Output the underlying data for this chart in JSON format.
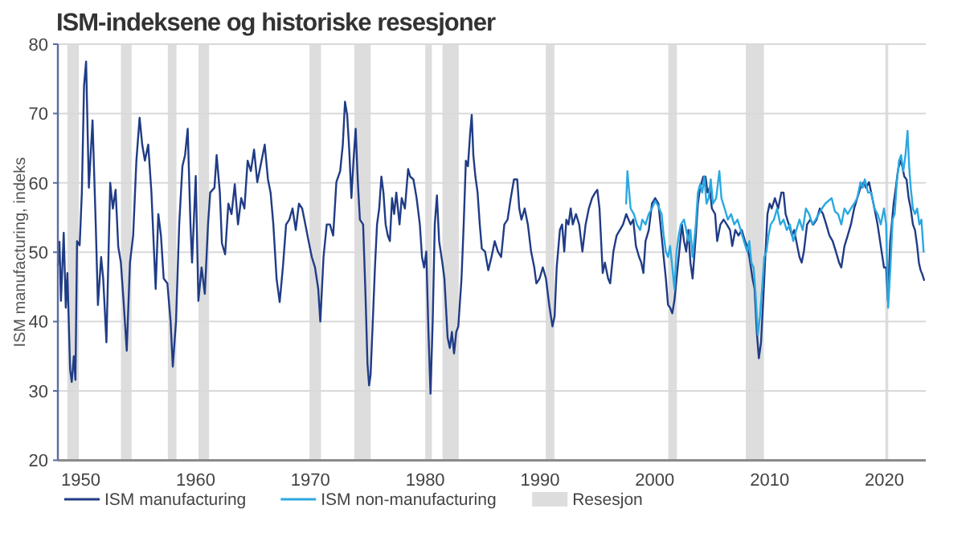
{
  "chart_data": {
    "type": "line",
    "title": "ISM-indeksene og historiske resesjoner",
    "ylabel": "ISM manufacturing, indeks",
    "xlim": [
      1948,
      2023.6
    ],
    "xticks": [
      1950,
      1960,
      1970,
      1980,
      1990,
      2000,
      2010,
      2020
    ],
    "ylim": [
      20,
      80
    ],
    "yticks": [
      20,
      30,
      40,
      50,
      60,
      70,
      80
    ],
    "grid": "y",
    "legend": "bottom",
    "series": [
      {
        "name": "ISM manufacturing",
        "color": "#203c86",
        "x": [
          1948.0,
          1948.14,
          1948.27,
          1948.51,
          1948.69,
          1948.83,
          1949.07,
          1949.21,
          1949.39,
          1949.53,
          1949.67,
          1949.9,
          1950.09,
          1950.28,
          1950.46,
          1950.7,
          1951.02,
          1951.3,
          1951.49,
          1951.77,
          1951.95,
          1952.23,
          1952.56,
          1952.79,
          1953.03,
          1953.26,
          1953.49,
          1953.72,
          1954.0,
          1954.28,
          1954.56,
          1954.84,
          1955.12,
          1955.35,
          1955.58,
          1955.87,
          1956.15,
          1956.52,
          1956.75,
          1956.98,
          1957.22,
          1957.54,
          1957.82,
          1958.01,
          1958.29,
          1958.57,
          1958.85,
          1959.08,
          1959.31,
          1959.55,
          1959.69,
          1960.01,
          1960.24,
          1960.52,
          1960.8,
          1961.08,
          1961.27,
          1961.64,
          1961.83,
          1962.11,
          1962.29,
          1962.57,
          1962.85,
          1963.13,
          1963.41,
          1963.69,
          1963.97,
          1964.25,
          1964.53,
          1964.81,
          1965.09,
          1965.37,
          1965.74,
          1966.02,
          1966.3,
          1966.53,
          1966.77,
          1967.05,
          1967.32,
          1967.6,
          1967.88,
          1968.16,
          1968.44,
          1968.72,
          1969.0,
          1969.28,
          1969.56,
          1969.84,
          1970.12,
          1970.4,
          1970.68,
          1970.86,
          1971.14,
          1971.42,
          1971.7,
          1971.98,
          1972.26,
          1972.59,
          1972.82,
          1973.01,
          1973.2,
          1973.38,
          1973.57,
          1973.75,
          1973.94,
          1974.13,
          1974.31,
          1974.59,
          1974.78,
          1974.97,
          1975.11,
          1975.24,
          1975.43,
          1975.62,
          1975.8,
          1975.99,
          1976.18,
          1976.36,
          1976.55,
          1976.74,
          1976.92,
          1977.11,
          1977.29,
          1977.48,
          1977.76,
          1977.95,
          1978.23,
          1978.51,
          1978.69,
          1978.97,
          1979.25,
          1979.53,
          1979.72,
          1979.9,
          1980.09,
          1980.28,
          1980.46,
          1980.65,
          1980.83,
          1981.02,
          1981.21,
          1981.49,
          1981.67,
          1981.95,
          1982.14,
          1982.32,
          1982.51,
          1982.7,
          1982.88,
          1983.16,
          1983.35,
          1983.54,
          1983.72,
          1983.91,
          1984.05,
          1984.19,
          1984.37,
          1984.56,
          1984.75,
          1984.93,
          1985.21,
          1985.49,
          1985.77,
          1986.05,
          1986.33,
          1986.61,
          1986.89,
          1987.17,
          1987.45,
          1987.73,
          1988.01,
          1988.19,
          1988.38,
          1988.66,
          1988.94,
          1989.22,
          1989.5,
          1989.68,
          1989.96,
          1990.24,
          1990.52,
          1990.8,
          1991.08,
          1991.27,
          1991.45,
          1991.73,
          1991.92,
          1992.11,
          1992.29,
          1992.48,
          1992.67,
          1992.85,
          1993.13,
          1993.41,
          1993.69,
          1993.97,
          1994.25,
          1994.53,
          1994.81,
          1994.99,
          1995.18,
          1995.46,
          1995.65,
          1995.93,
          1996.11,
          1996.39,
          1996.67,
          1996.95,
          1997.23,
          1997.51,
          1997.89,
          1998.12,
          1998.35,
          1998.63,
          1998.82,
          1999.0,
          1999.19,
          1999.47,
          1999.75,
          2000.03,
          2000.31,
          2000.49,
          2000.77,
          2000.96,
          2001.15,
          2001.33,
          2001.52,
          2001.71,
          2001.89,
          2002.08,
          2002.36,
          2002.54,
          2002.73,
          2002.92,
          2003.1,
          2003.29,
          2003.57,
          2003.75,
          2003.94,
          2004.22,
          2004.41,
          2004.59,
          2004.78,
          2004.97,
          2005.25,
          2005.43,
          2005.71,
          2005.99,
          2006.27,
          2006.55,
          2006.74,
          2007.01,
          2007.29,
          2007.57,
          2007.85,
          2008.04,
          2008.23,
          2008.51,
          2008.69,
          2008.88,
          2009.06,
          2009.25,
          2009.44,
          2009.62,
          2009.81,
          2010.0,
          2010.18,
          2010.46,
          2010.74,
          2011.02,
          2011.21,
          2011.39,
          2011.67,
          2011.95,
          2012.14,
          2012.32,
          2012.6,
          2012.79,
          2012.98,
          2013.26,
          2013.54,
          2013.81,
          2014.09,
          2014.37,
          2014.65,
          2014.93,
          2015.21,
          2015.49,
          2015.77,
          2016.05,
          2016.24,
          2016.52,
          2016.8,
          2017.08,
          2017.36,
          2017.63,
          2017.91,
          2018.19,
          2018.38,
          2018.66,
          2018.94,
          2019.13,
          2019.4,
          2019.68,
          2019.96,
          2020.15,
          2020.3,
          2020.5,
          2020.8,
          2020.99,
          2021.17,
          2021.36,
          2021.55,
          2021.73,
          2021.92,
          2022.11,
          2022.29,
          2022.48,
          2022.66,
          2022.85,
          2023.0,
          2023.15,
          2023.3,
          2023.45
        ],
        "values": [
          48,
          51.5,
          43,
          52.8,
          42,
          47,
          33,
          31.3,
          35,
          31.6,
          51.6,
          51,
          58.6,
          74,
          77.5,
          59.3,
          69,
          54,
          42.4,
          49.3,
          46.2,
          37,
          60,
          56.3,
          59,
          50.8,
          48.5,
          43,
          35.8,
          48.5,
          52.4,
          63.2,
          69.4,
          65.5,
          63.2,
          65.5,
          58.6,
          44.7,
          55.5,
          52.4,
          46.2,
          45.5,
          40,
          33.5,
          40,
          54,
          62.4,
          64,
          67.8,
          54,
          48.5,
          61,
          43,
          47.8,
          44,
          54,
          58.6,
          59.3,
          64,
          58.6,
          51.3,
          49.7,
          57,
          55.5,
          59.8,
          54,
          57.8,
          56.3,
          63.2,
          61.7,
          64.8,
          60.1,
          63.2,
          65.5,
          60.5,
          58.6,
          54,
          46.2,
          42.8,
          47.8,
          54,
          54.7,
          56.3,
          53.2,
          57,
          56.3,
          54,
          51.6,
          49.3,
          47.8,
          44.7,
          40,
          49.3,
          54,
          54,
          52.4,
          60.1,
          61.7,
          65.5,
          71.7,
          69.8,
          64.8,
          57.8,
          63.2,
          67.8,
          60.1,
          54.7,
          54,
          44.7,
          33.9,
          30.8,
          32.3,
          40,
          47.8,
          54,
          56.3,
          60.9,
          58.6,
          54,
          52.4,
          51.6,
          57.8,
          55.5,
          58.6,
          54,
          57.8,
          56.3,
          62,
          60.9,
          60.5,
          57.8,
          54,
          49.3,
          47.8,
          50.1,
          38.5,
          29.6,
          40,
          54,
          58.2,
          51.6,
          48.5,
          46.2,
          37.7,
          36.2,
          38.5,
          35.4,
          38.5,
          39.3,
          46.2,
          54,
          63.2,
          62.4,
          67.1,
          69.8,
          64,
          60.9,
          58.6,
          54,
          50.5,
          50.1,
          47.4,
          49.3,
          51.6,
          50.1,
          49.3,
          54,
          54.7,
          57.8,
          60.5,
          60.5,
          56.3,
          54.7,
          56.3,
          54,
          50.1,
          47.8,
          45.5,
          46.2,
          47.8,
          46.2,
          42.4,
          39.3,
          40.8,
          47.8,
          53.2,
          54,
          50.1,
          54.7,
          54,
          56.3,
          54,
          55.5,
          54,
          50.1,
          54,
          56.3,
          57.8,
          58.6,
          59,
          56.3,
          47,
          48.5,
          46.2,
          45.5,
          50.1,
          52.4,
          53.2,
          54,
          55.5,
          54,
          54.7,
          50.9,
          49.3,
          48.5,
          47,
          51.6,
          53.2,
          57,
          57.8,
          57,
          54,
          49.3,
          46.2,
          42.4,
          42,
          41.2,
          43.1,
          46.2,
          49.3,
          54,
          51.6,
          50.1,
          53.2,
          48.5,
          46.2,
          52.4,
          57,
          59.3,
          60.9,
          60.9,
          58.6,
          59.3,
          56.3,
          55.5,
          51.6,
          54,
          54.7,
          54,
          53.2,
          50.9,
          53.2,
          52.4,
          53.2,
          51.6,
          50.9,
          49.3,
          46.2,
          44.7,
          38.5,
          34.7,
          37,
          43.1,
          49.3,
          55.5,
          57,
          56.3,
          57.8,
          56.3,
          58.6,
          58.6,
          55.5,
          54,
          52.4,
          53.2,
          51.6,
          49.3,
          48.5,
          50.1,
          54,
          54.7,
          54,
          54.7,
          56.3,
          55.5,
          54,
          52.4,
          51.6,
          50.1,
          48.5,
          47.8,
          50.9,
          52.4,
          54,
          56.3,
          57.8,
          59.3,
          60.1,
          59.3,
          60.1,
          57.8,
          56.3,
          54,
          50.9,
          47.8,
          47.8,
          43,
          51.6,
          57,
          59.3,
          61.7,
          63.2,
          62.4,
          60.9,
          60.5,
          57.8,
          56.3,
          54,
          53.2,
          50.9,
          48.5,
          47.4,
          46.8,
          46
        ]
      },
      {
        "name": "ISM non-manufacturing",
        "color": "#2aa9e0",
        "x": [
          1997.5,
          1997.61,
          1997.89,
          1998.17,
          1998.44,
          1998.72,
          1998.91,
          1999.19,
          1999.47,
          1999.75,
          2000.03,
          2000.31,
          2000.59,
          2000.77,
          2000.96,
          2001.15,
          2001.33,
          2001.52,
          2001.71,
          2001.89,
          2002.08,
          2002.26,
          2002.54,
          2002.73,
          2002.92,
          2003.1,
          2003.29,
          2003.57,
          2003.75,
          2003.94,
          2004.13,
          2004.31,
          2004.5,
          2004.69,
          2004.87,
          2005.06,
          2005.34,
          2005.62,
          2005.8,
          2006.08,
          2006.36,
          2006.64,
          2006.92,
          2007.2,
          2007.48,
          2007.76,
          2008.04,
          2008.23,
          2008.41,
          2008.6,
          2008.78,
          2008.97,
          2009.16,
          2009.34,
          2009.53,
          2009.72,
          2009.9,
          2010.09,
          2010.37,
          2010.65,
          2010.93,
          2011.21,
          2011.49,
          2011.77,
          2012.05,
          2012.32,
          2012.6,
          2012.88,
          2013.16,
          2013.44,
          2013.72,
          2014.0,
          2014.28,
          2014.56,
          2014.84,
          2015.12,
          2015.4,
          2015.68,
          2015.96,
          2016.24,
          2016.52,
          2016.8,
          2017.08,
          2017.36,
          2017.63,
          2017.91,
          2018.1,
          2018.29,
          2018.57,
          2018.85,
          2019.13,
          2019.4,
          2019.68,
          2019.96,
          2020.15,
          2020.32,
          2020.52,
          2020.71,
          2020.89,
          2021.08,
          2021.27,
          2021.45,
          2021.64,
          2021.83,
          2022.01,
          2022.15,
          2022.29,
          2022.48,
          2022.66,
          2022.85,
          2023.04,
          2023.22,
          2023.41
        ],
        "values": [
          57,
          61.7,
          56.3,
          55.5,
          54,
          53.2,
          54.7,
          54,
          55.5,
          56.3,
          57.4,
          56.6,
          55.5,
          52.4,
          50.1,
          49.3,
          50.9,
          47.8,
          44.7,
          50.1,
          52.4,
          54,
          54.7,
          53.2,
          51.6,
          53.2,
          49.3,
          54,
          58.6,
          59.8,
          58.6,
          60.9,
          57,
          57.8,
          60.5,
          57,
          57.8,
          61.7,
          57.8,
          56.3,
          54.7,
          55.5,
          54,
          54.7,
          53.2,
          51.6,
          50.1,
          51.6,
          48.5,
          47.8,
          43.9,
          38.1,
          40.8,
          44.7,
          49.3,
          50.1,
          52.4,
          54,
          54.7,
          56.3,
          54,
          54.7,
          53.2,
          54,
          51.6,
          53.2,
          54.7,
          53.2,
          56.3,
          55.5,
          54,
          54.7,
          55.5,
          56.3,
          57,
          57.4,
          57.8,
          55.9,
          55.5,
          54,
          56.3,
          55.5,
          56.3,
          57,
          57.8,
          60.1,
          59.3,
          60.5,
          58.6,
          58.6,
          56.3,
          55.5,
          54,
          56.3,
          54,
          42,
          47.8,
          54.7,
          55.5,
          60.1,
          63.2,
          64,
          61.7,
          64,
          67.5,
          62.4,
          59.3,
          56.3,
          55.5,
          56.3,
          54,
          54.7,
          50.1
        ]
      }
    ],
    "bands": [
      {
        "axis": "x",
        "from": 1948.83,
        "to": 1949.83,
        "label": "Resesjon",
        "color": "#dddddd"
      },
      {
        "axis": "x",
        "from": 1953.5,
        "to": 1954.42,
        "color": "#dddddd"
      },
      {
        "axis": "x",
        "from": 1957.58,
        "to": 1958.33,
        "color": "#dddddd"
      },
      {
        "axis": "x",
        "from": 1960.25,
        "to": 1961.17,
        "color": "#dddddd"
      },
      {
        "axis": "x",
        "from": 1969.92,
        "to": 1970.92,
        "color": "#dddddd"
      },
      {
        "axis": "x",
        "from": 1973.83,
        "to": 1975.25,
        "color": "#dddddd"
      },
      {
        "axis": "x",
        "from": 1980.0,
        "to": 1980.58,
        "color": "#dddddd"
      },
      {
        "axis": "x",
        "from": 1981.5,
        "to": 1982.92,
        "color": "#dddddd"
      },
      {
        "axis": "x",
        "from": 1990.5,
        "to": 1991.25,
        "color": "#dddddd"
      },
      {
        "axis": "x",
        "from": 2001.17,
        "to": 2001.92,
        "color": "#dddddd"
      },
      {
        "axis": "x",
        "from": 2007.92,
        "to": 2009.5,
        "color": "#dddddd"
      },
      {
        "axis": "x",
        "from": 2020.08,
        "to": 2020.33,
        "color": "#dddddd"
      }
    ]
  }
}
